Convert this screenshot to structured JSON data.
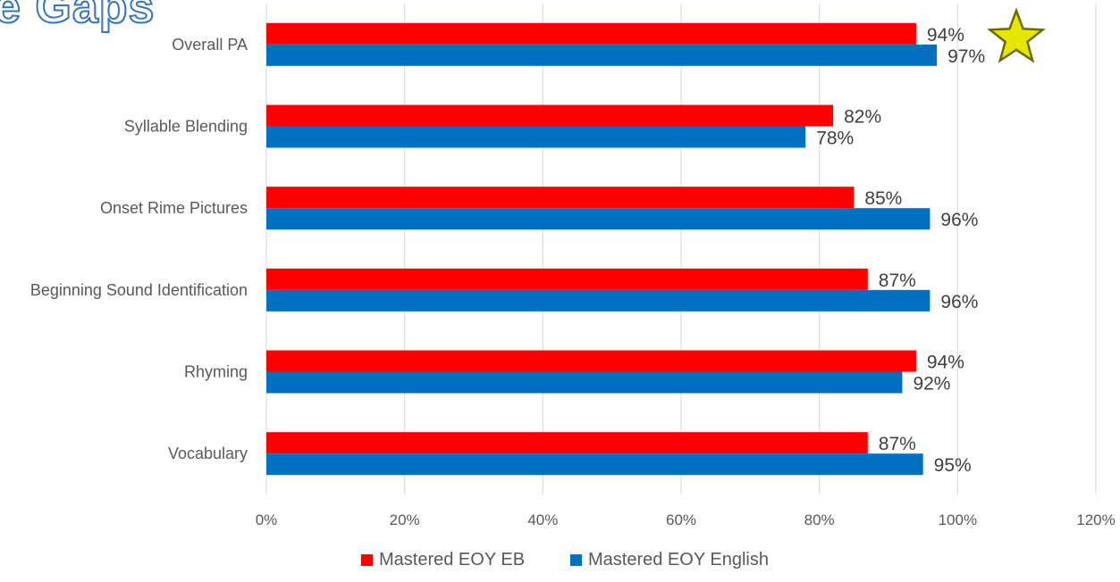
{
  "title_fragment": "e Gaps",
  "colors": {
    "eb": "#ff0000",
    "english": "#0070c0",
    "grid": "#d9d9d9",
    "axis_text": "#595959",
    "label_text": "#404040",
    "star_fill": "#e6e600",
    "star_stroke": "#6b6b00"
  },
  "annotation": {
    "icon": "star-icon",
    "category": "Overall PA"
  },
  "chart_data": {
    "type": "bar",
    "orientation": "horizontal",
    "categories": [
      "Overall PA",
      "Syllable Blending",
      "Onset Rime Pictures",
      "Beginning Sound Identification",
      "Rhyming",
      "Vocabulary"
    ],
    "series": [
      {
        "name": "Mastered EOY EB",
        "values": [
          94,
          82,
          85,
          87,
          94,
          87
        ]
      },
      {
        "name": "Mastered EOY English",
        "values": [
          97,
          78,
          96,
          96,
          92,
          95
        ]
      }
    ],
    "data_labels": [
      [
        "94%",
        "82%",
        "85%",
        "87%",
        "94%",
        "87%"
      ],
      [
        "97%",
        "78%",
        "96%",
        "96%",
        "92%",
        "95%"
      ]
    ],
    "x_ticks": [
      "0%",
      "20%",
      "40%",
      "60%",
      "80%",
      "100%",
      "120%"
    ],
    "xlim": [
      0,
      120
    ],
    "grid": true,
    "legend_position": "bottom"
  }
}
